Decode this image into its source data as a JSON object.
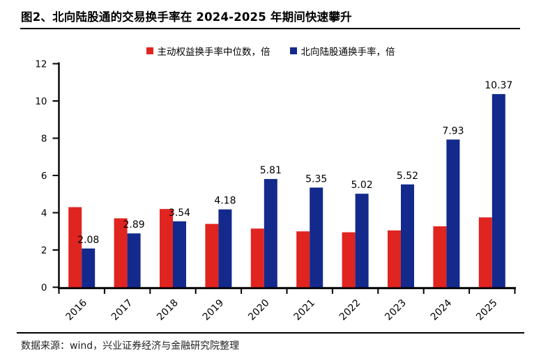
{
  "title": "图2、北向陆股通的交易换手率在 2024-2025 年期间快速攀升",
  "footer": {
    "source_text": "数据来源：wind，兴业证券经济与金融研究院整理"
  },
  "colors": {
    "red_series": "#E02420",
    "blue_series": "#13298C",
    "axis": "#000000",
    "text": "#000000"
  },
  "chart_data": {
    "type": "bar",
    "title": "",
    "categories": [
      "2016",
      "2017",
      "2018",
      "2019",
      "2020",
      "2021",
      "2022",
      "2023",
      "2024",
      "2025"
    ],
    "series": [
      {
        "name": "主动权益换手率中位数，倍",
        "color_key": "red_series",
        "values": [
          4.3,
          3.7,
          4.2,
          3.4,
          3.15,
          3.0,
          2.95,
          3.05,
          3.27,
          3.75
        ],
        "labels_shown": false
      },
      {
        "name": "北向陆股通换手率，倍",
        "color_key": "blue_series",
        "values": [
          2.08,
          2.89,
          3.54,
          4.18,
          5.81,
          5.35,
          5.02,
          5.52,
          7.93,
          10.37
        ],
        "labels_shown": true,
        "data_labels": [
          "2.08",
          "2.89",
          "3.54",
          "4.18",
          "5.81",
          "5.35",
          "5.02",
          "5.52",
          "7.93",
          "10.37"
        ]
      }
    ],
    "ylim": [
      0,
      12
    ],
    "yticks": [
      "0",
      "2",
      "4",
      "6",
      "8",
      "10",
      "12"
    ],
    "xlabel": "",
    "ylabel": "",
    "grid": false,
    "legend_position": "top",
    "x_tick_rotation": -45
  }
}
